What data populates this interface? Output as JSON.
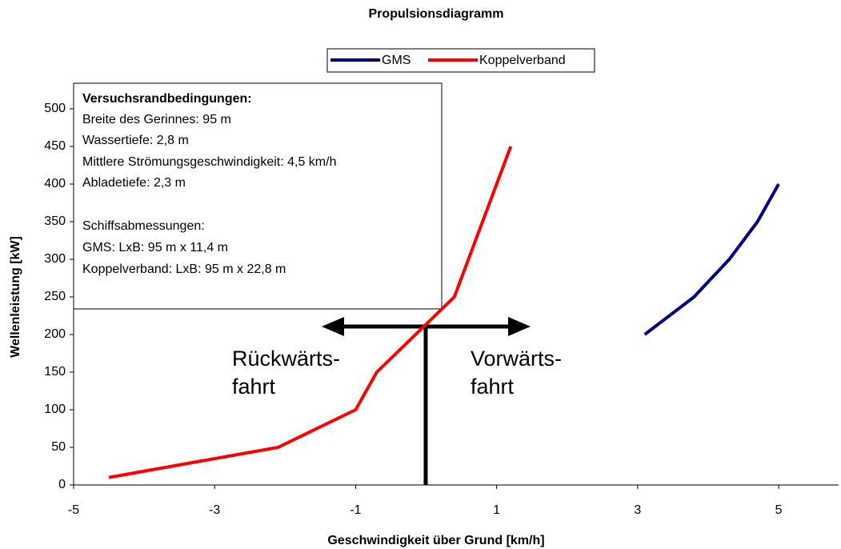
{
  "chart_data": {
    "type": "line",
    "title": "Propulsionsdiagramm",
    "x_label": "Geschwindigkeit über Grund [km/h]",
    "y_label": "Wellenleistung [kW]",
    "xlim": [
      -5,
      5.85
    ],
    "ylim": [
      0,
      500
    ],
    "xticks": [
      -5,
      -3,
      -1,
      1,
      3,
      5
    ],
    "yticks": [
      0,
      50,
      100,
      150,
      200,
      250,
      300,
      350,
      400,
      450,
      500
    ],
    "legend": "top",
    "series": [
      {
        "name": "GMS",
        "color": "#000080",
        "x": [
          3.1,
          3.8,
          4.3,
          4.7,
          5
        ],
        "values": [
          200,
          250,
          300,
          350,
          400
        ]
      },
      {
        "name": "Koppelverband",
        "color": "#ff0000",
        "x": [
          -4.5,
          -2.1,
          -1,
          -0.7,
          0.4,
          1.2
        ],
        "values": [
          10,
          50,
          100,
          150,
          250,
          450
        ]
      }
    ],
    "info_box": {
      "heading": "Versuchsrandbedingungen:",
      "lines": [
        "Breite des Gerinnes:   95 m",
        "Wassertiefe: 2,8 m",
        "Mittlere Strömungsgeschwindigkeit:  4,5 km/h",
        "Abladetiefe: 2,3 m",
        "Schiffsabmessungen:",
        "GMS: LxB: 95 m x 11,4 m",
        "Koppelverband: LxB: 95 m x 22,8 m"
      ]
    },
    "annotations": [
      "Rückwärts-",
      "fahrt",
      "Vorwärts-",
      "fahrt"
    ]
  }
}
